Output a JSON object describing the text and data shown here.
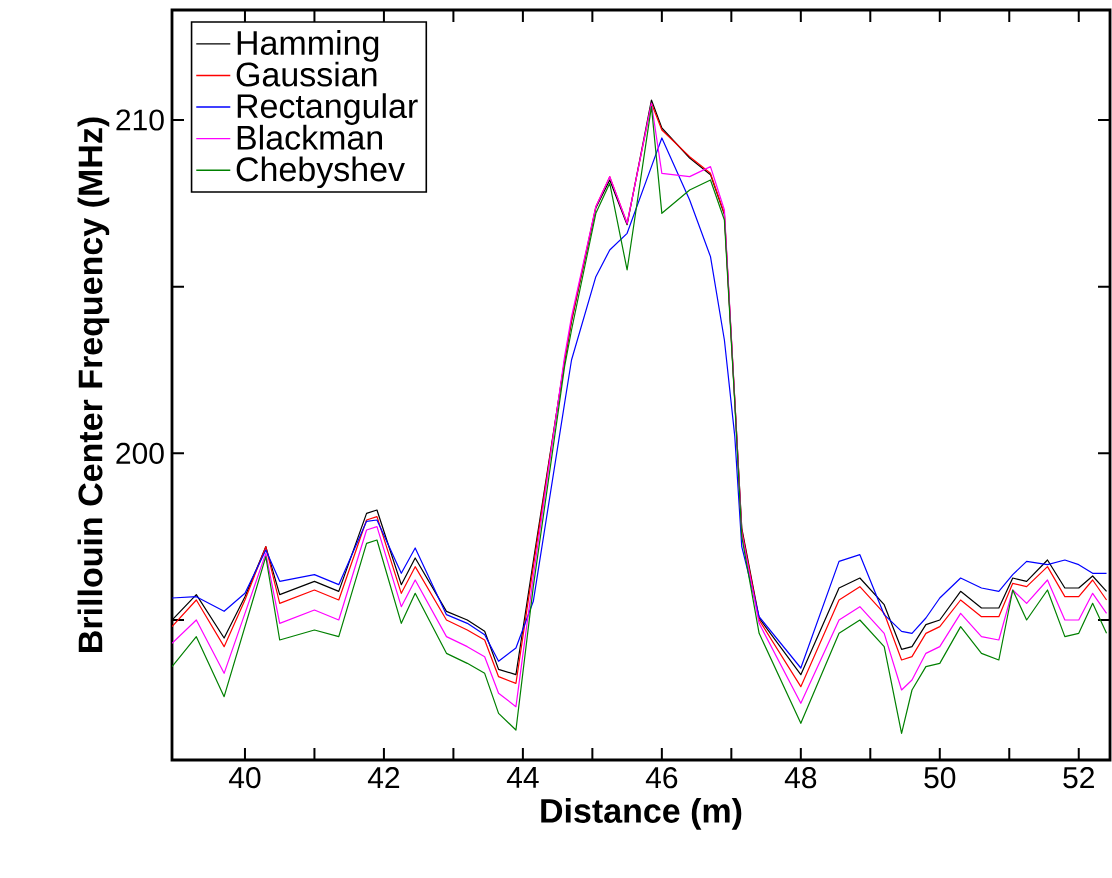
{
  "chart_data": {
    "type": "line",
    "xlabel": "Distance (m)",
    "ylabel": "Brillouin Center Frequency (MHz)",
    "x": [
      38.95,
      39.3,
      39.7,
      40.0,
      40.3,
      40.5,
      41.0,
      41.35,
      41.75,
      41.9,
      42.25,
      42.45,
      42.9,
      43.2,
      43.45,
      43.65,
      43.9,
      44.15,
      44.6,
      44.7,
      45.05,
      45.25,
      45.5,
      45.85,
      46.0,
      46.4,
      46.7,
      46.9,
      47.05,
      47.15,
      47.4,
      48.0,
      48.55,
      48.85,
      49.2,
      49.45,
      49.6,
      49.8,
      50.0,
      50.3,
      50.6,
      50.85,
      51.05,
      51.25,
      51.55,
      51.8,
      52.0,
      52.2,
      52.4
    ],
    "series": [
      {
        "name": "Hamming",
        "color": "#000000",
        "values": [
          195.0,
          195.76,
          194.46,
          195.7,
          197.2,
          195.76,
          196.16,
          195.86,
          198.2,
          198.3,
          196.06,
          196.86,
          195.26,
          195.0,
          194.66,
          193.52,
          193.36,
          196.76,
          202.76,
          203.96,
          207.36,
          208.2,
          206.86,
          210.6,
          209.76,
          208.86,
          208.36,
          207.16,
          201.56,
          197.76,
          195.06,
          193.36,
          195.96,
          196.26,
          195.46,
          194.12,
          194.2,
          194.86,
          195.0,
          195.86,
          195.36,
          195.36,
          196.26,
          196.16,
          196.8,
          195.96,
          195.96,
          196.32,
          195.86
        ]
      },
      {
        "name": "Gaussian",
        "color": "#ff0000",
        "values": [
          194.8,
          195.6,
          194.2,
          195.6,
          197.2,
          195.5,
          195.9,
          195.6,
          198.0,
          198.1,
          195.8,
          196.6,
          195.0,
          194.7,
          194.4,
          193.3,
          193.1,
          196.6,
          202.8,
          204.0,
          207.4,
          208.3,
          206.9,
          210.5,
          209.7,
          208.9,
          208.4,
          207.2,
          201.6,
          197.7,
          195.0,
          193.0,
          195.6,
          196.0,
          195.2,
          193.8,
          193.9,
          194.6,
          194.8,
          195.6,
          195.1,
          195.1,
          196.1,
          196.0,
          196.6,
          195.7,
          195.7,
          196.2,
          195.6
        ]
      },
      {
        "name": "Rectangular",
        "color": "#0000ff",
        "values": [
          195.66,
          195.7,
          195.26,
          195.8,
          197.1,
          196.16,
          196.36,
          196.06,
          197.96,
          198.0,
          196.4,
          197.16,
          195.16,
          194.9,
          194.56,
          193.76,
          194.16,
          195.56,
          201.5,
          202.8,
          205.3,
          206.1,
          206.6,
          208.6,
          209.46,
          207.6,
          205.9,
          203.4,
          200.5,
          197.2,
          195.1,
          193.56,
          196.76,
          196.96,
          195.16,
          194.66,
          194.6,
          195.06,
          195.66,
          196.26,
          195.96,
          195.86,
          196.36,
          196.76,
          196.66,
          196.8,
          196.66,
          196.4,
          196.4
        ]
      },
      {
        "name": "Blackman",
        "color": "#ff00ff",
        "values": [
          194.3,
          195.0,
          193.4,
          195.2,
          197.0,
          194.9,
          195.3,
          195.0,
          197.7,
          197.8,
          195.4,
          196.2,
          194.5,
          194.2,
          193.9,
          192.8,
          192.4,
          196.3,
          202.9,
          204.1,
          207.4,
          208.3,
          206.9,
          210.5,
          208.4,
          208.3,
          208.6,
          207.3,
          201.6,
          197.6,
          194.9,
          192.5,
          195.0,
          195.4,
          194.6,
          192.9,
          193.2,
          194.0,
          194.2,
          195.2,
          194.5,
          194.4,
          195.9,
          195.5,
          196.2,
          195.0,
          195.0,
          195.8,
          195.2
        ]
      },
      {
        "name": "Chebyshev",
        "color": "#008000",
        "values": [
          193.6,
          194.5,
          192.7,
          194.8,
          196.9,
          194.4,
          194.7,
          194.5,
          197.3,
          197.4,
          194.9,
          195.8,
          194.0,
          193.7,
          193.4,
          192.2,
          191.7,
          196.0,
          202.6,
          203.7,
          207.2,
          208.1,
          205.5,
          210.4,
          207.2,
          207.9,
          208.2,
          207.0,
          201.5,
          197.5,
          194.6,
          191.9,
          194.6,
          195.0,
          194.2,
          191.6,
          192.9,
          193.6,
          193.7,
          194.8,
          194.0,
          193.8,
          195.9,
          195.0,
          195.9,
          194.5,
          194.6,
          195.5,
          194.6
        ]
      }
    ],
    "xlim": [
      38.95,
      52.45
    ],
    "ylim": [
      190.8,
      213.3
    ],
    "xticks": [
      40,
      {
        "value": 41,
        "label": null
      },
      42,
      {
        "value": 43,
        "label": null
      },
      44,
      {
        "value": 45,
        "label": null
      },
      46,
      {
        "value": 47,
        "label": null
      },
      48,
      {
        "value": 49,
        "label": null
      },
      50,
      {
        "value": 51,
        "label": null
      },
      52
    ],
    "yticks": [
      {
        "value": 195,
        "label": null
      },
      200,
      {
        "value": 205,
        "label": null
      },
      210
    ],
    "legend": "top left",
    "grid": false
  }
}
